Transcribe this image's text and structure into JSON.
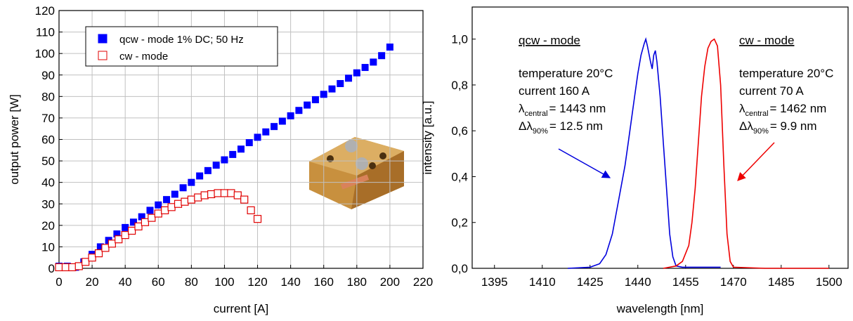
{
  "chart_data": [
    {
      "type": "scatter",
      "xlabel": "current [A]",
      "ylabel": "output power [W]",
      "xlim": [
        0,
        220
      ],
      "ylim": [
        0,
        120
      ],
      "xticks": [
        0,
        20,
        40,
        60,
        80,
        100,
        120,
        140,
        160,
        180,
        200,
        220
      ],
      "yticks": [
        0,
        10,
        20,
        30,
        40,
        50,
        60,
        70,
        80,
        90,
        100,
        110,
        120
      ],
      "grid": true,
      "legend": "upper left",
      "series": [
        {
          "name": "qcw - mode 1% DC; 50 Hz",
          "color": "#0000ff",
          "marker": "filled-square",
          "x": [
            0,
            5,
            10,
            15,
            20,
            25,
            30,
            35,
            40,
            45,
            50,
            55,
            60,
            65,
            70,
            75,
            80,
            85,
            90,
            95,
            100,
            105,
            110,
            115,
            120,
            125,
            130,
            135,
            140,
            145,
            150,
            155,
            160,
            165,
            170,
            175,
            180,
            185,
            190,
            195,
            200
          ],
          "values": [
            1,
            1,
            0.5,
            3,
            6.5,
            10,
            13,
            16,
            19,
            21.5,
            24,
            27,
            29.5,
            32,
            34.5,
            37.5,
            40,
            43,
            45.5,
            48,
            50.5,
            53,
            55.5,
            58.5,
            61,
            63.5,
            66,
            68.5,
            71,
            73.5,
            76,
            78.5,
            81,
            83.5,
            86,
            88.5,
            91,
            93.5,
            96,
            99,
            103
          ]
        },
        {
          "name": "cw - mode",
          "color": "#e00000",
          "marker": "open-square",
          "x": [
            0,
            4,
            8,
            12,
            16,
            20,
            24,
            28,
            32,
            36,
            40,
            44,
            48,
            52,
            56,
            60,
            64,
            68,
            72,
            76,
            80,
            84,
            88,
            92,
            96,
            100,
            104,
            108,
            112,
            116,
            120
          ],
          "values": [
            0.5,
            0.5,
            0.5,
            1,
            3,
            5,
            7,
            9.5,
            11.5,
            13.5,
            15.5,
            17.5,
            19.5,
            21.5,
            23.5,
            25.5,
            27,
            28.5,
            30,
            31,
            32,
            33,
            34,
            34.5,
            35,
            35,
            35,
            34,
            32,
            27,
            23
          ]
        }
      ]
    },
    {
      "type": "line",
      "xlabel": "wavelength [nm]",
      "ylabel": "intensity [a.u.]",
      "xlim": [
        1388,
        1506
      ],
      "ylim": [
        0,
        1.14
      ],
      "xticks": [
        1395,
        1410,
        1425,
        1440,
        1455,
        1470,
        1485,
        1500
      ],
      "yticks": [
        {
          "value": 0,
          "label": "0,0"
        },
        {
          "value": 0.2,
          "label": "0,2"
        },
        {
          "value": 0.4,
          "label": "0,4"
        },
        {
          "value": 0.6,
          "label": "0,6"
        },
        {
          "value": 0.8,
          "label": "0,8"
        },
        {
          "value": 1.0,
          "label": "1,0"
        }
      ],
      "grid": false,
      "series": [
        {
          "name": "qcw - mode",
          "color": "#0000dd",
          "x": [
            1418,
            1425,
            1428,
            1430,
            1432,
            1434,
            1436,
            1437,
            1438,
            1439,
            1440,
            1441,
            1442,
            1442.5,
            1443,
            1444,
            1444.5,
            1445,
            1445.5,
            1446,
            1447,
            1448,
            1449,
            1450,
            1451,
            1452,
            1454,
            1460,
            1466
          ],
          "values": [
            0,
            0.005,
            0.02,
            0.06,
            0.15,
            0.3,
            0.45,
            0.55,
            0.65,
            0.75,
            0.85,
            0.93,
            0.98,
            1.0,
            0.97,
            0.9,
            0.87,
            0.93,
            0.95,
            0.9,
            0.75,
            0.55,
            0.35,
            0.15,
            0.05,
            0.01,
            0.005,
            0.005,
            0.005
          ]
        },
        {
          "name": "cw - mode",
          "color": "#ee0000",
          "x": [
            1448,
            1452,
            1454,
            1456,
            1457,
            1458,
            1459,
            1460,
            1461,
            1462,
            1463,
            1464,
            1465,
            1466,
            1467,
            1468,
            1469,
            1470,
            1480,
            1490,
            1500
          ],
          "values": [
            0,
            0.01,
            0.03,
            0.1,
            0.2,
            0.35,
            0.55,
            0.75,
            0.88,
            0.96,
            0.99,
            1.0,
            0.97,
            0.8,
            0.45,
            0.15,
            0.03,
            0.005,
            0,
            0,
            0
          ]
        }
      ],
      "annotations": [
        {
          "title": "qcw - mode",
          "temperature": "temperature 20°C",
          "current": "current 160 A",
          "lambda": [
            "λ",
            "central",
            "= 1443 nm"
          ],
          "width": [
            "Δλ",
            "90%",
            "= 12.5 nm"
          ]
        },
        {
          "title": "cw - mode",
          "temperature": "temperature 20°C",
          "current": "current 70 A",
          "lambda": [
            "λ",
            "central",
            "= 1462 nm"
          ],
          "width": [
            "Δλ",
            "90%",
            "= 9.9 nm"
          ]
        }
      ]
    }
  ]
}
